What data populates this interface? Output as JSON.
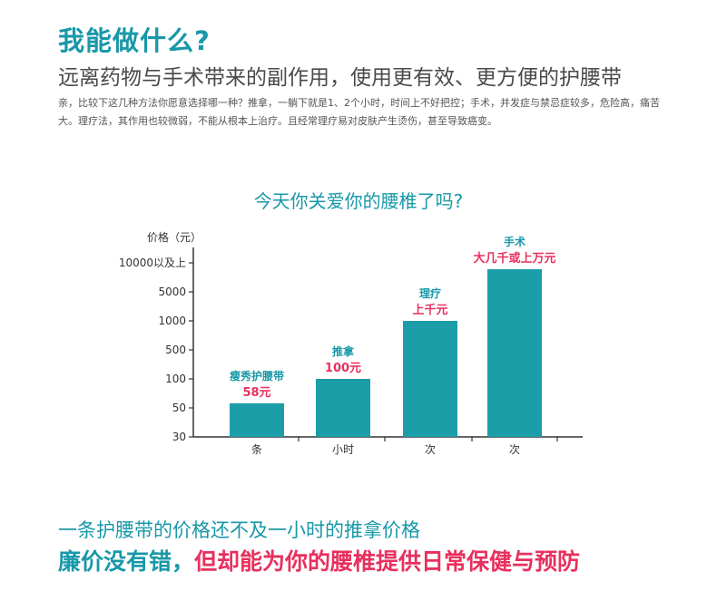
{
  "header": {
    "title": "我能做什么?",
    "subtitle": "远离药物与手术带来的副作用，使用更有效、更方便的护腰带",
    "description": "亲，比较下这几种方法你愿意选择哪一种？推拿，一躺下就是1、2个小时，时间上不好把控；手术，并发症与禁忌症较多，危险高，痛苦大。理疗法，其作用也较微弱，不能从根本上治疗。且经常理疗易对皮肤产生烫伤，甚至导致癌变。"
  },
  "chart_heading": "今天你关爱你的腰椎了吗?",
  "chart_data": {
    "type": "bar",
    "ylabel": "价格（元）",
    "y_ticks": [
      "10000以及上",
      "5000",
      "1000",
      "500",
      "100",
      "50",
      "30"
    ],
    "categories": [
      "条",
      "小时",
      "次",
      "次"
    ],
    "values": [
      58,
      100,
      1000,
      8000
    ],
    "bar_names": [
      "瘦秀护腰带",
      "推拿",
      "理疗",
      "手术"
    ],
    "bar_prices": [
      "58元",
      "100元",
      "上千元",
      "大几千或上万元"
    ],
    "colors": {
      "bar": "#1b9ea8",
      "name": "#1898a8",
      "price": "#e8305e",
      "axis": "#333333"
    }
  },
  "footer": {
    "line1": "一条护腰带的价格还不及一小时的推拿价格",
    "line2_part1": "廉价没有错，",
    "line2_part2": "但却能为你的腰椎提供日常保健与预防"
  }
}
